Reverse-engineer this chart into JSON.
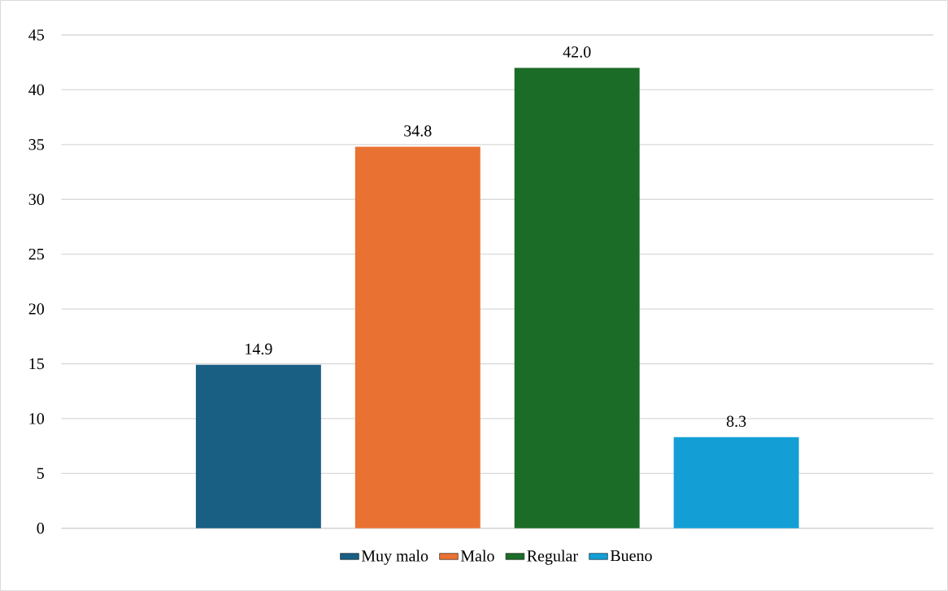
{
  "chart_data": {
    "type": "bar",
    "categories": [
      null
    ],
    "series": [
      {
        "name": "Muy malo",
        "color": "#195f84",
        "values": [
          14.9
        ],
        "value_labels": [
          "14.9"
        ]
      },
      {
        "name": "Malo",
        "color": "#e97132",
        "values": [
          34.8
        ],
        "value_labels": [
          "34.8"
        ]
      },
      {
        "name": "Regular",
        "color": "#1b6c27",
        "values": [
          42.0
        ],
        "value_labels": [
          "42.0"
        ]
      },
      {
        "name": "Bueno",
        "color": "#139fd6",
        "values": [
          8.3
        ],
        "value_labels": [
          "8.3"
        ]
      }
    ],
    "ylim": [
      0,
      45
    ],
    "yticks": [
      0,
      5,
      10,
      15,
      20,
      25,
      30,
      35,
      40,
      45
    ],
    "grid": "y",
    "legend": "bottom"
  }
}
